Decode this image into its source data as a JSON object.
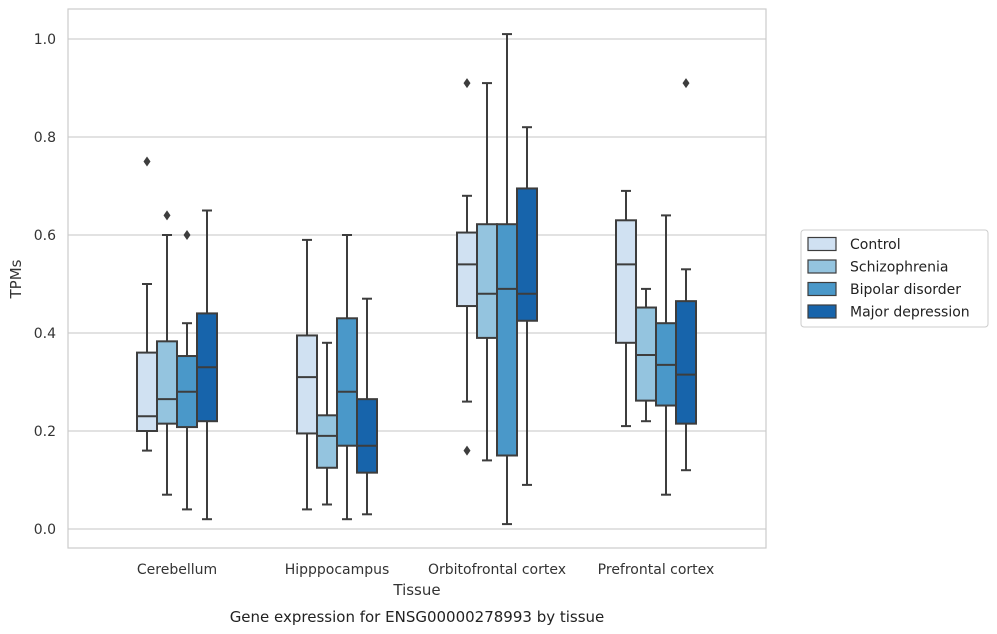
{
  "chart_data": {
    "type": "box",
    "caption": "Gene expression for ENSG00000278993 by tissue",
    "xlabel": "Tissue",
    "ylabel": "TPMs",
    "ylim": [
      -0.04,
      1.06
    ],
    "yticks": [
      "0.0",
      "0.2",
      "0.4",
      "0.6",
      "0.8",
      "1.0"
    ],
    "grid": true,
    "legend_position": "right",
    "categories": [
      "Cerebellum",
      "Hipppocampus",
      "Orbitofrontal cortex",
      "Prefrontal cortex"
    ],
    "series": [
      {
        "name": "Control",
        "color": "#d0e1f2",
        "boxes": [
          {
            "whislo": 0.16,
            "q1": 0.2,
            "med": 0.23,
            "q3": 0.36,
            "whishi": 0.5,
            "fliers": [
              0.75
            ]
          },
          {
            "whislo": 0.04,
            "q1": 0.195,
            "med": 0.31,
            "q3": 0.395,
            "whishi": 0.59,
            "fliers": []
          },
          {
            "whislo": 0.26,
            "q1": 0.455,
            "med": 0.54,
            "q3": 0.605,
            "whishi": 0.68,
            "fliers": [
              0.91,
              0.16
            ]
          },
          {
            "whislo": 0.21,
            "q1": 0.38,
            "med": 0.54,
            "q3": 0.63,
            "whishi": 0.69,
            "fliers": []
          }
        ]
      },
      {
        "name": "Schizophrenia",
        "color": "#94c4df",
        "boxes": [
          {
            "whislo": 0.07,
            "q1": 0.215,
            "med": 0.265,
            "q3": 0.383,
            "whishi": 0.6,
            "fliers": [
              0.64
            ]
          },
          {
            "whislo": 0.05,
            "q1": 0.125,
            "med": 0.19,
            "q3": 0.232,
            "whishi": 0.38,
            "fliers": []
          },
          {
            "whislo": 0.14,
            "q1": 0.39,
            "med": 0.48,
            "q3": 0.622,
            "whishi": 0.91,
            "fliers": []
          },
          {
            "whislo": 0.22,
            "q1": 0.262,
            "med": 0.355,
            "q3": 0.452,
            "whishi": 0.49,
            "fliers": []
          }
        ]
      },
      {
        "name": "Bipolar disorder",
        "color": "#4a98c9",
        "boxes": [
          {
            "whislo": 0.04,
            "q1": 0.208,
            "med": 0.28,
            "q3": 0.353,
            "whishi": 0.42,
            "fliers": [
              0.6
            ]
          },
          {
            "whislo": 0.02,
            "q1": 0.17,
            "med": 0.28,
            "q3": 0.43,
            "whishi": 0.6,
            "fliers": []
          },
          {
            "whislo": 0.01,
            "q1": 0.15,
            "med": 0.49,
            "q3": 0.622,
            "whishi": 1.01,
            "fliers": []
          },
          {
            "whislo": 0.07,
            "q1": 0.252,
            "med": 0.335,
            "q3": 0.42,
            "whishi": 0.64,
            "fliers": []
          }
        ]
      },
      {
        "name": "Major depression",
        "color": "#1764ab",
        "boxes": [
          {
            "whislo": 0.02,
            "q1": 0.22,
            "med": 0.33,
            "q3": 0.44,
            "whishi": 0.65,
            "fliers": []
          },
          {
            "whislo": 0.03,
            "q1": 0.115,
            "med": 0.17,
            "q3": 0.265,
            "whishi": 0.47,
            "fliers": []
          },
          {
            "whislo": 0.09,
            "q1": 0.425,
            "med": 0.48,
            "q3": 0.695,
            "whishi": 0.82,
            "fliers": []
          },
          {
            "whislo": 0.12,
            "q1": 0.215,
            "med": 0.315,
            "q3": 0.465,
            "whishi": 0.53,
            "fliers": [
              0.91
            ]
          }
        ]
      }
    ]
  }
}
